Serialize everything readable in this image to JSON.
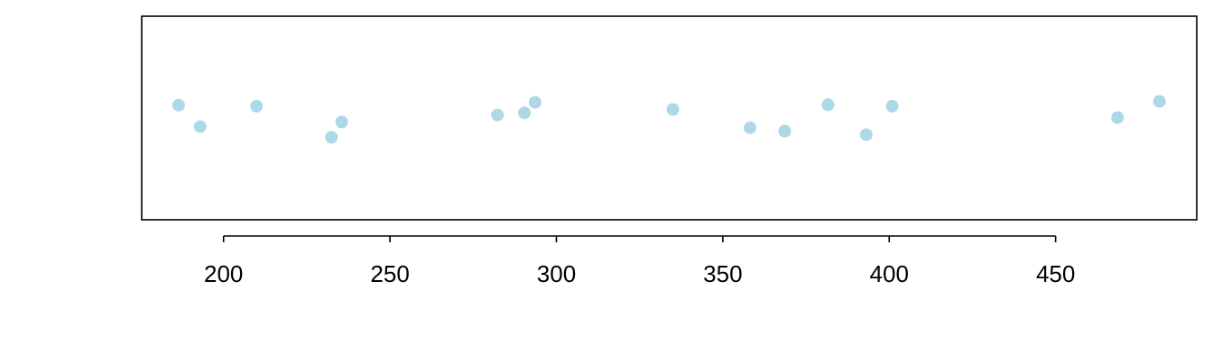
{
  "chart_data": {
    "type": "scatter",
    "title": "",
    "xlabel": "",
    "ylabel": "",
    "xlim": [
      175.4,
      492.4
    ],
    "ylim": [
      0,
      1
    ],
    "x_ticks": [
      200,
      250,
      300,
      350,
      400,
      450
    ],
    "x_tick_labels": [
      "200",
      "250",
      "300",
      "350",
      "400",
      "450"
    ],
    "show_y_axis": false,
    "grid": false,
    "legend": "none",
    "point_color": "#add8e6",
    "axis_color": "#000000",
    "points": [
      {
        "x": 186.5,
        "y": 0.563
      },
      {
        "x": 193.0,
        "y": 0.458
      },
      {
        "x": 209.9,
        "y": 0.558
      },
      {
        "x": 232.4,
        "y": 0.405
      },
      {
        "x": 235.5,
        "y": 0.48
      },
      {
        "x": 282.3,
        "y": 0.515
      },
      {
        "x": 290.4,
        "y": 0.525
      },
      {
        "x": 293.6,
        "y": 0.577
      },
      {
        "x": 335.0,
        "y": 0.542
      },
      {
        "x": 358.2,
        "y": 0.452
      },
      {
        "x": 368.6,
        "y": 0.436
      },
      {
        "x": 381.6,
        "y": 0.565
      },
      {
        "x": 393.1,
        "y": 0.418
      },
      {
        "x": 400.9,
        "y": 0.558
      },
      {
        "x": 468.6,
        "y": 0.502
      },
      {
        "x": 481.2,
        "y": 0.582
      }
    ]
  }
}
